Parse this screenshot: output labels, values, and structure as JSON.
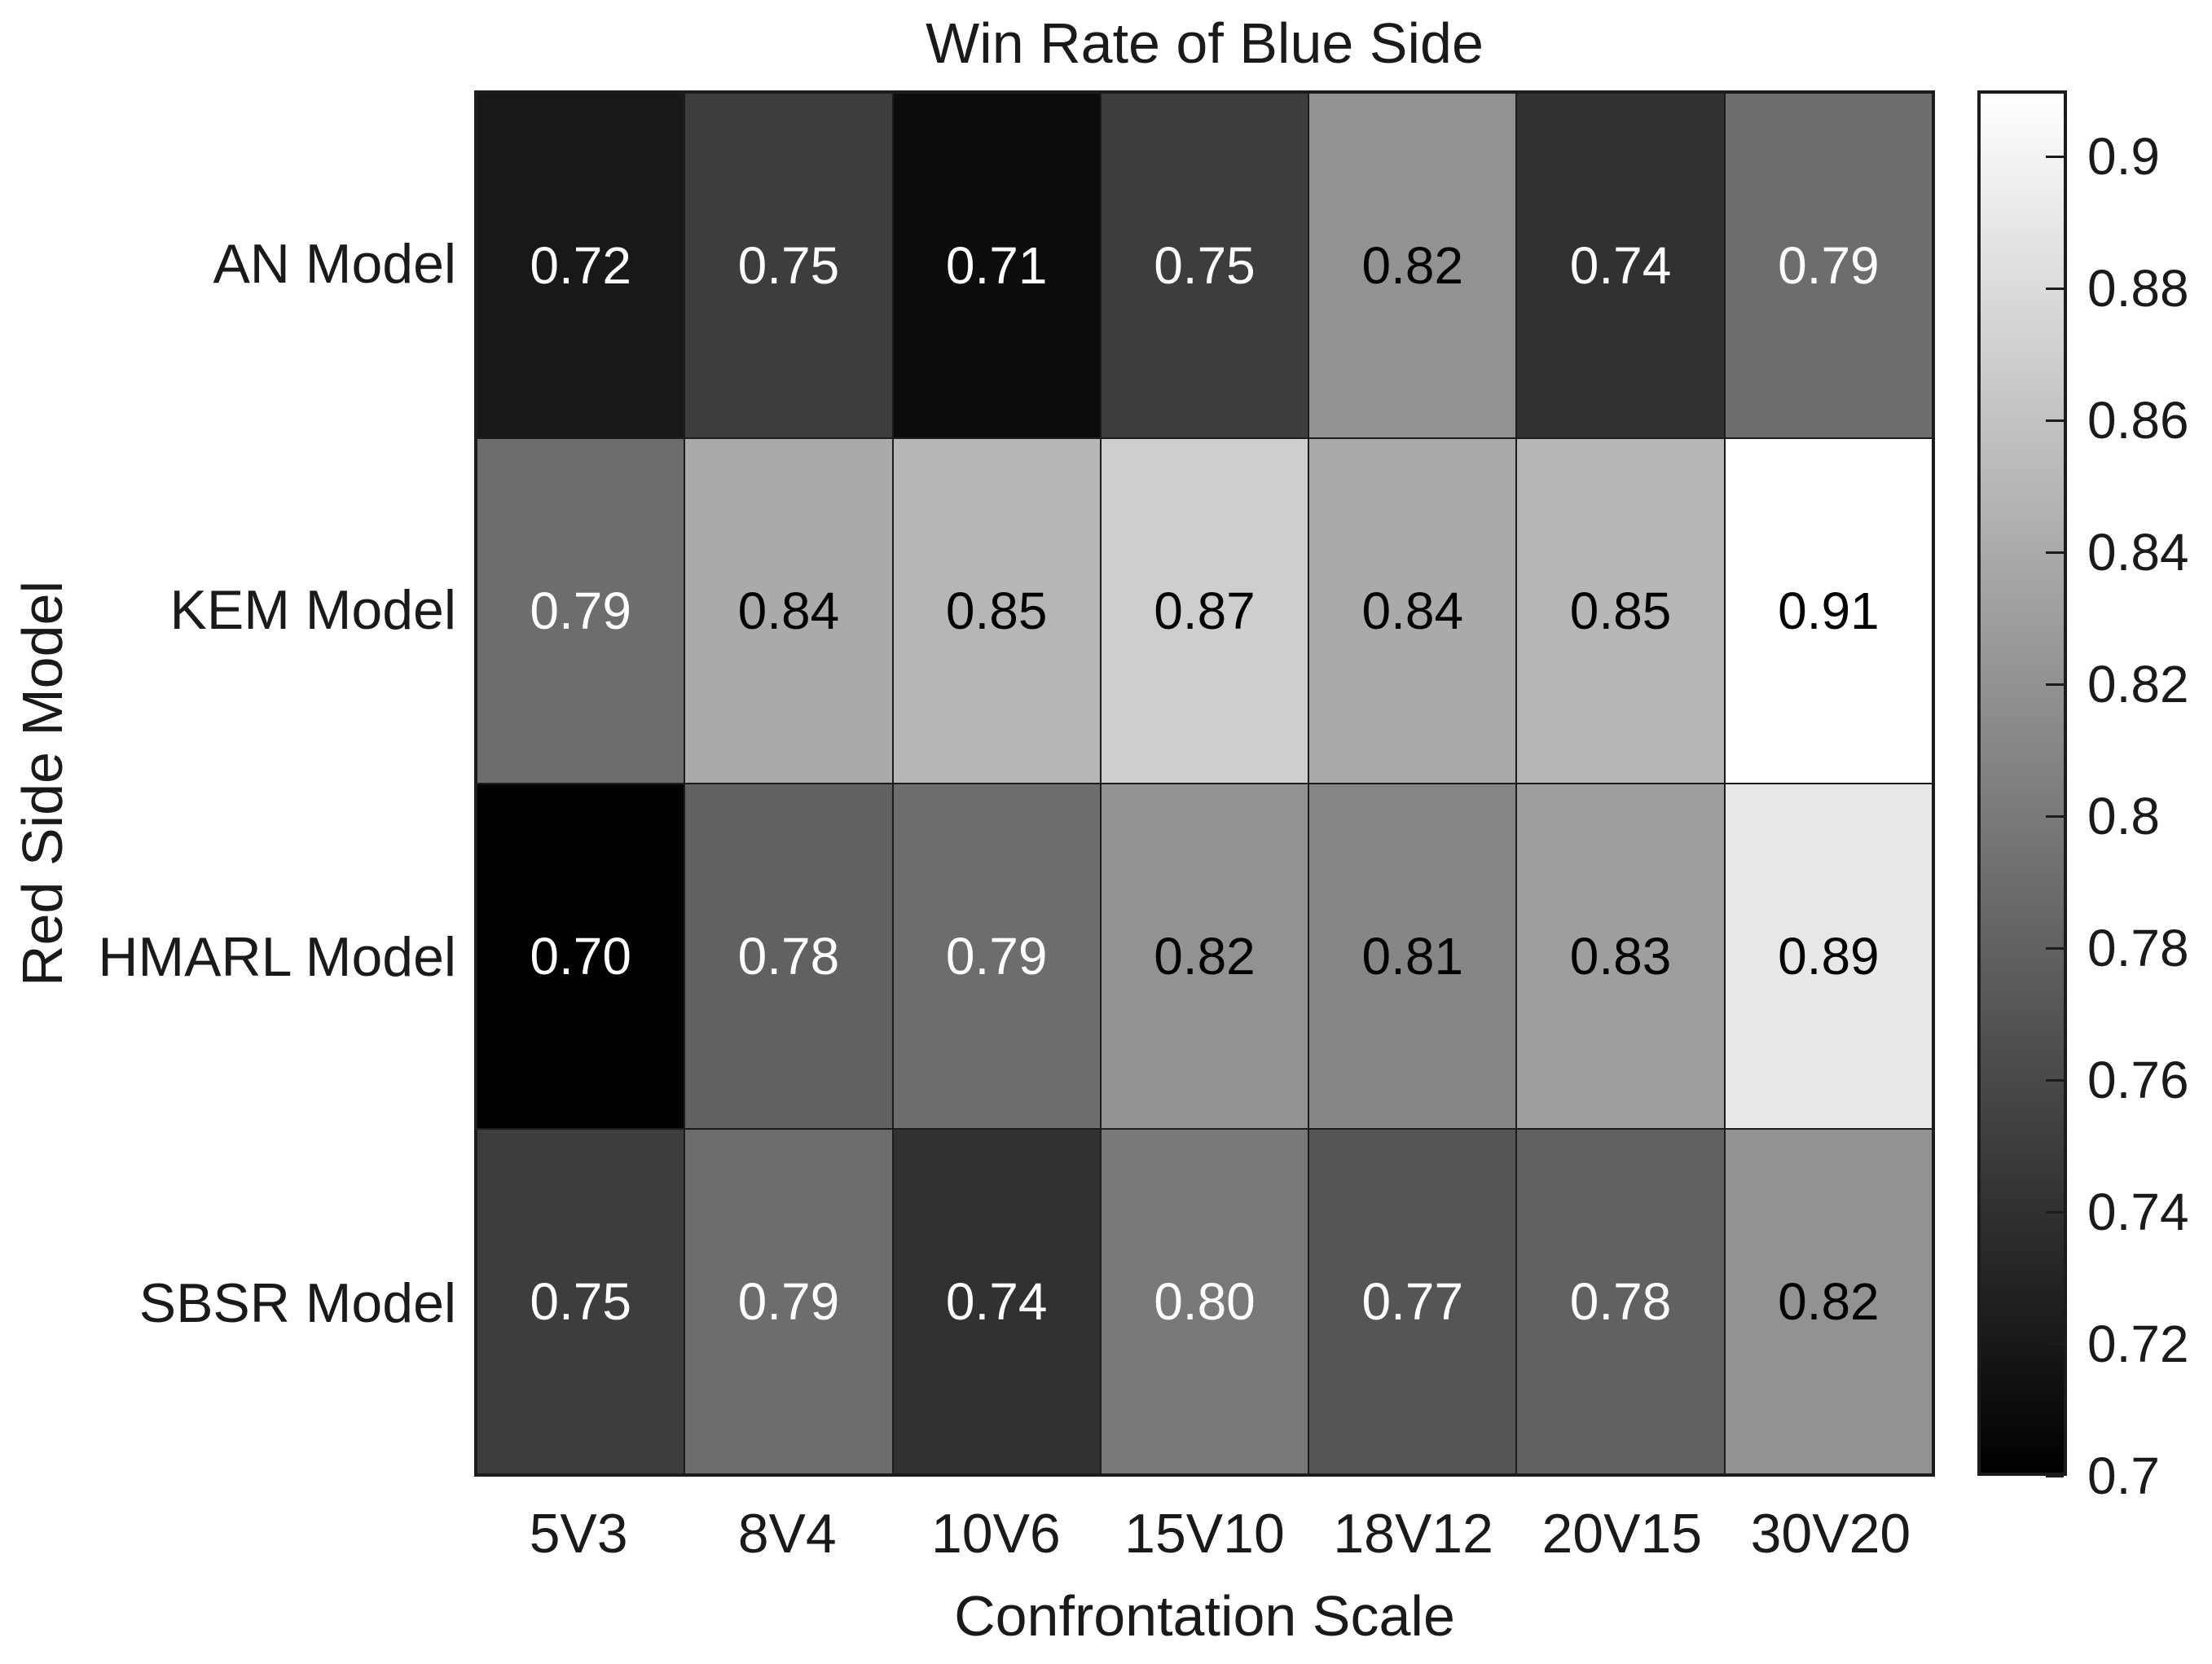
{
  "chart_data": {
    "type": "heatmap",
    "title": "Win Rate of Blue Side",
    "xlabel": "Confrontation Scale",
    "ylabel": "Red Side Model",
    "x_categories": [
      "5V3",
      "8V4",
      "10V6",
      "15V10",
      "18V12",
      "20V15",
      "30V20"
    ],
    "y_categories": [
      "AN Model",
      "KEM Model",
      "HMARL Model",
      "SBSR Model"
    ],
    "values": [
      [
        0.72,
        0.75,
        0.71,
        0.75,
        0.82,
        0.74,
        0.79
      ],
      [
        0.79,
        0.84,
        0.85,
        0.87,
        0.84,
        0.85,
        0.91
      ],
      [
        0.7,
        0.78,
        0.79,
        0.82,
        0.81,
        0.83,
        0.89
      ],
      [
        0.75,
        0.79,
        0.74,
        0.8,
        0.77,
        0.78,
        0.82
      ]
    ],
    "value_decimals": 2,
    "colormap": "gray",
    "vmin": 0.7,
    "vmax": 0.91,
    "text_color_threshold": 0.805,
    "cell_text_colors": {
      "on_light": "#000000",
      "on_dark": "#ffffff"
    },
    "grid_color": "#1c1c1c",
    "colorbar_ticks": [
      0.7,
      0.72,
      0.74,
      0.76,
      0.78,
      0.8,
      0.82,
      0.84,
      0.86,
      0.88,
      0.9
    ],
    "colorbar_tick_labels": [
      "0.7",
      "0.72",
      "0.74",
      "0.76",
      "0.78",
      "0.8",
      "0.82",
      "0.84",
      "0.86",
      "0.88",
      "0.9"
    ],
    "legend_position": "right",
    "grid_on": true
  }
}
